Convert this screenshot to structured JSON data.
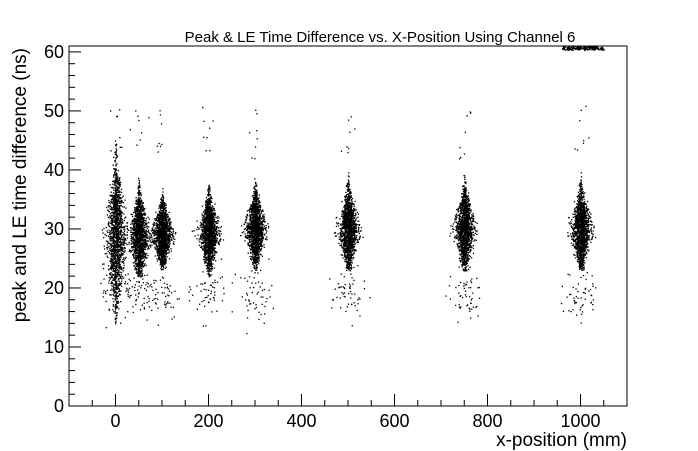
{
  "chart_data": {
    "type": "scatter",
    "title": "Peak & LE Time Difference vs. X-Position Using Channel 6",
    "xlabel": "x-position (mm)",
    "ylabel": "peak and LE time difference (ns)",
    "xlim": [
      -100,
      1100
    ],
    "ylim": [
      0,
      61
    ],
    "x_ticks": [
      0,
      200,
      400,
      600,
      800,
      1000
    ],
    "y_ticks": [
      0,
      10,
      20,
      30,
      40,
      50,
      60
    ],
    "x_tick_labels": [
      "0",
      "200",
      "400",
      "600",
      "800",
      "1000"
    ],
    "y_tick_labels": [
      "0",
      "10",
      "20",
      "30",
      "40",
      "50",
      "60"
    ],
    "grid": false,
    "legend": "none",
    "marker_color": "#000000",
    "clusters": [
      {
        "x": 0,
        "y_center": 29,
        "y_range": [
          14,
          45
        ],
        "secondary_y": 20
      },
      {
        "x": 50,
        "y_center": 29,
        "y_range": [
          22,
          40
        ],
        "secondary_y": 19
      },
      {
        "x": 100,
        "y_center": 29,
        "y_range": [
          23,
          37
        ],
        "secondary_y": 19
      },
      {
        "x": 200,
        "y_center": 29.5,
        "y_range": [
          22,
          38
        ],
        "secondary_y": 19
      },
      {
        "x": 300,
        "y_center": 30,
        "y_range": [
          23,
          39
        ],
        "secondary_y": 19
      },
      {
        "x": 500,
        "y_center": 30,
        "y_range": [
          23,
          40
        ],
        "secondary_y": 19
      },
      {
        "x": 750,
        "y_center": 30,
        "y_range": [
          23,
          40
        ],
        "secondary_y": 19
      },
      {
        "x": 1000,
        "y_center": 30,
        "y_range": [
          23,
          40
        ],
        "secondary_y": 19
      }
    ],
    "overflow_band": {
      "x_range": [
        960,
        1050
      ],
      "y": 61
    }
  }
}
